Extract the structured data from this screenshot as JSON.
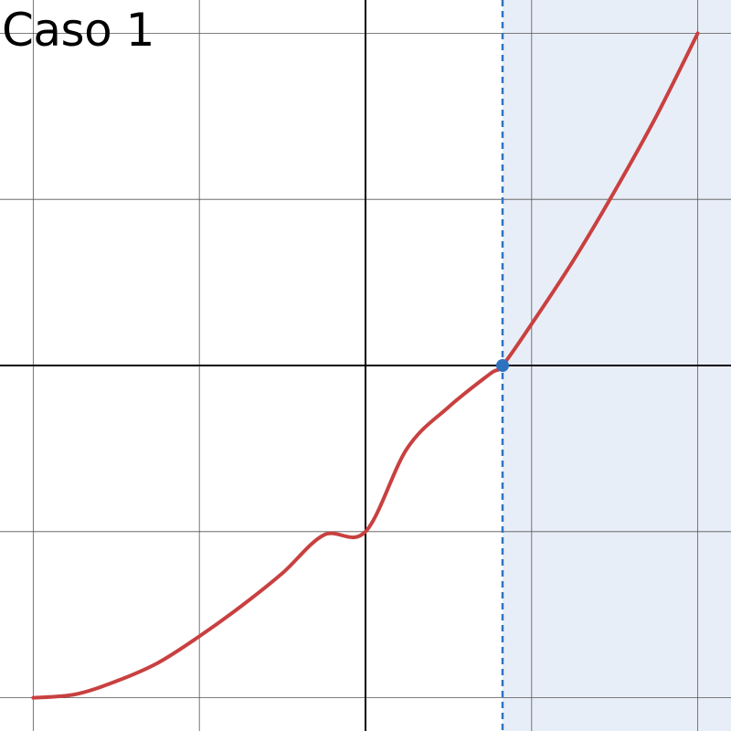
{
  "title": "Caso 1",
  "chart_data": {
    "type": "line",
    "title": "Caso 1",
    "xlabel": "",
    "ylabel": "",
    "xlim": [
      -2.2,
      2.2
    ],
    "ylim": [
      -2.2,
      2.2
    ],
    "grid": true,
    "grid_step": 1,
    "series": [
      {
        "color": "#c94040",
        "x": [
          -2.0,
          -1.75,
          -1.5,
          -1.25,
          -1.0,
          -0.75,
          -0.5,
          -0.25,
          0.0,
          0.25,
          0.5,
          0.75,
          0.825,
          1.0,
          1.25,
          1.5,
          1.75,
          2.0
        ],
        "y": [
          -2.0,
          -1.98,
          -1.9,
          -1.79,
          -1.63,
          -1.45,
          -1.25,
          -1.02,
          -1.0,
          -0.5,
          -0.25,
          -0.05,
          0.0,
          0.25,
          0.63,
          1.05,
          1.5,
          2.0
        ]
      }
    ],
    "marked_point": {
      "x": 0.825,
      "y": 0.0,
      "color": "#2f73c0"
    },
    "vertical_line": {
      "x": 0.825,
      "style": "dashed",
      "color": "#2f73c0"
    },
    "shaded_region": {
      "x_from": 0.825,
      "x_to": 2.2,
      "color": "#e8eef7"
    }
  }
}
